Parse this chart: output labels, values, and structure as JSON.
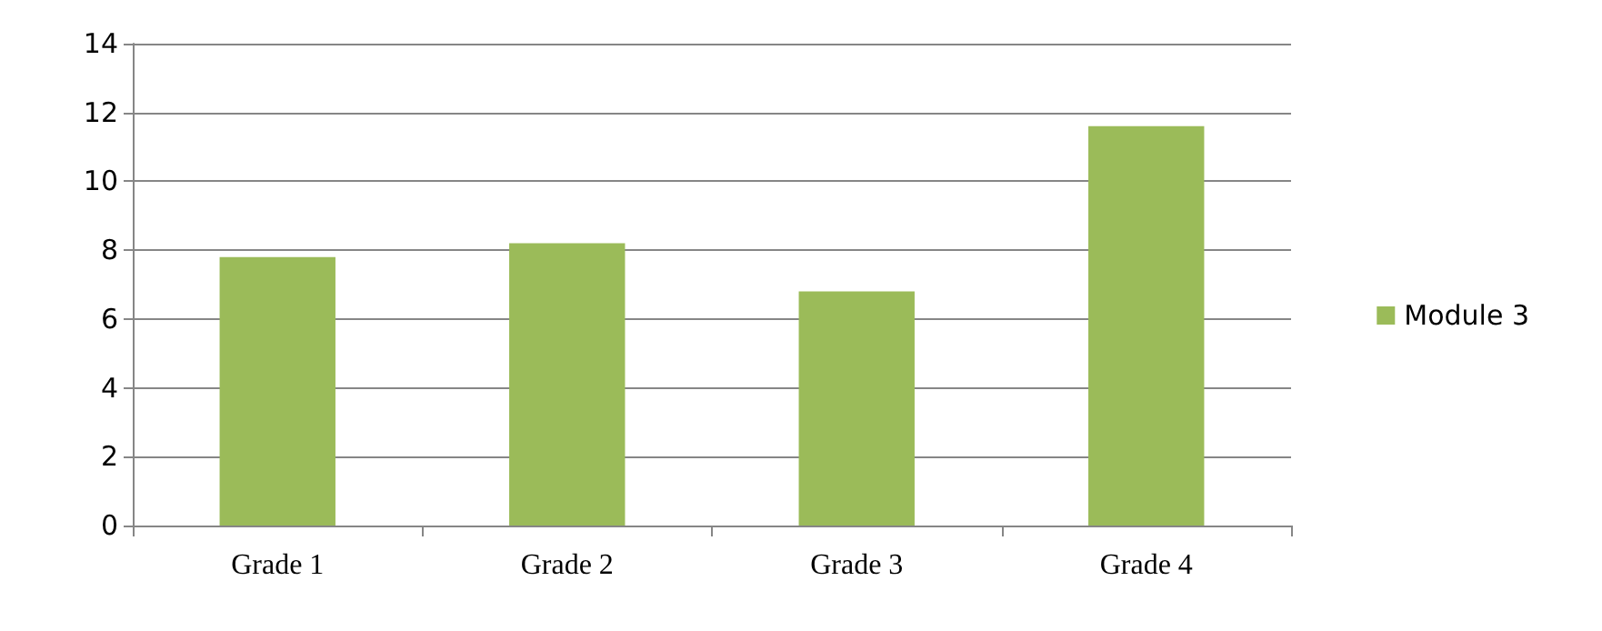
{
  "chart_data": {
    "type": "bar",
    "categories": [
      "Grade 1",
      "Grade 2",
      "Grade 3",
      "Grade 4"
    ],
    "series": [
      {
        "name": "Module 3",
        "color": "#9bbb59",
        "values": [
          7.8,
          8.2,
          6.8,
          11.6
        ]
      }
    ],
    "ylim": [
      0,
      14
    ],
    "yticks": [
      0,
      2,
      4,
      6,
      8,
      10,
      12,
      14
    ],
    "grid": "y",
    "legend": "right"
  }
}
